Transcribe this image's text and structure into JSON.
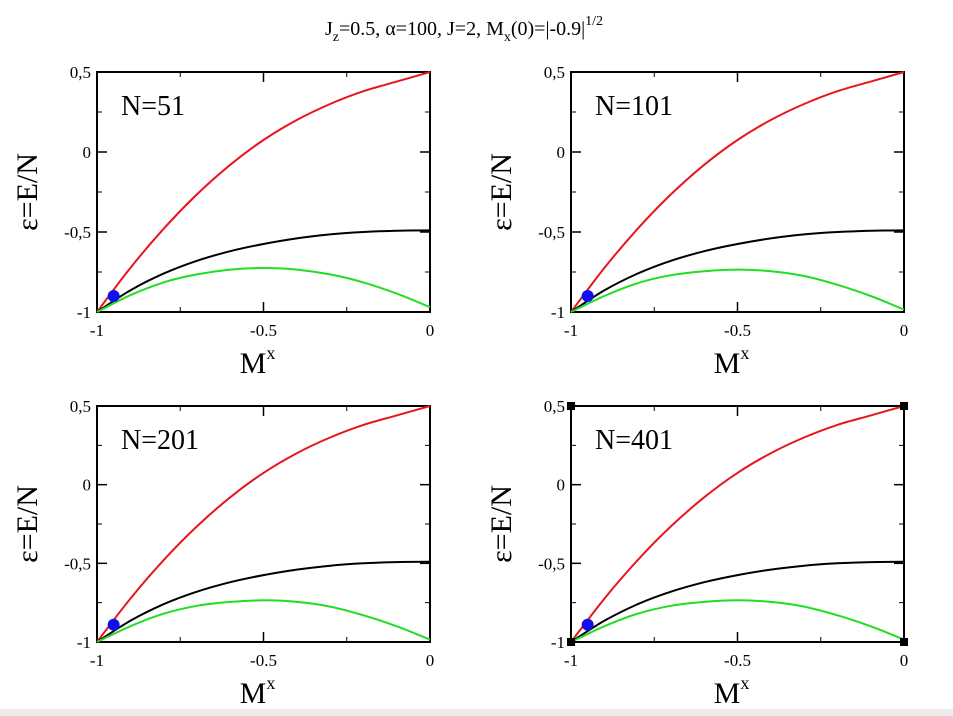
{
  "figure": {
    "title": {
      "parts": [
        "J",
        "z",
        "=0.5, ",
        "α",
        "=100, J=2, M",
        "x",
        "(0)=|-0.9|",
        "1/2"
      ]
    }
  },
  "colors": {
    "upper_curve": "#e8151b",
    "middle_curve": "#000000",
    "lower_curve": "#22dd22",
    "marker": "#1010ee"
  },
  "chart_data": [
    {
      "type": "line",
      "annotation": "N=51",
      "xlabel": "M",
      "xlabel_sup": "x",
      "ylabel": "ε=E/N",
      "xlim": [
        -1,
        0
      ],
      "ylim": [
        -1,
        0.5
      ],
      "x_ticks": [
        "-1",
        "-0.5",
        "0"
      ],
      "y_ticks": [
        "0,5",
        "0",
        "-0,5",
        "-1"
      ],
      "grid": false,
      "x": [
        -1,
        -0.9,
        -0.8,
        -0.7,
        -0.6,
        -0.5,
        -0.4,
        -0.3,
        -0.2,
        -0.1,
        0
      ],
      "series": [
        {
          "values": [
            -1,
            -0.725,
            -0.48,
            -0.265,
            -0.08,
            0.075,
            0.2,
            0.3,
            0.38,
            0.44,
            0.5
          ]
        },
        {
          "values": [
            -1,
            -0.865,
            -0.76,
            -0.68,
            -0.62,
            -0.575,
            -0.54,
            -0.515,
            -0.5,
            -0.492,
            -0.49
          ]
        },
        {
          "values": [
            -1,
            -0.895,
            -0.815,
            -0.765,
            -0.735,
            -0.725,
            -0.735,
            -0.765,
            -0.815,
            -0.885,
            -0.97
          ]
        }
      ],
      "marker": {
        "x": -0.95,
        "y": -0.9
      }
    },
    {
      "type": "line",
      "annotation": "N=101",
      "xlabel": "M",
      "xlabel_sup": "x",
      "ylabel": "ε=E/N",
      "xlim": [
        -1,
        0
      ],
      "ylim": [
        -1,
        0.5
      ],
      "x_ticks": [
        "-1",
        "-0.5",
        "0"
      ],
      "y_ticks": [
        "0,5",
        "0",
        "-0,5",
        "-1"
      ],
      "grid": false,
      "x": [
        -1,
        -0.9,
        -0.8,
        -0.7,
        -0.6,
        -0.5,
        -0.4,
        -0.3,
        -0.2,
        -0.1,
        0
      ],
      "series": [
        {
          "values": [
            -1,
            -0.725,
            -0.48,
            -0.265,
            -0.08,
            0.075,
            0.2,
            0.3,
            0.38,
            0.44,
            0.5
          ]
        },
        {
          "values": [
            -1,
            -0.865,
            -0.76,
            -0.68,
            -0.62,
            -0.575,
            -0.54,
            -0.515,
            -0.5,
            -0.492,
            -0.49
          ]
        },
        {
          "values": [
            -1,
            -0.9,
            -0.82,
            -0.77,
            -0.745,
            -0.735,
            -0.745,
            -0.775,
            -0.83,
            -0.9,
            -0.985
          ]
        }
      ],
      "marker": {
        "x": -0.95,
        "y": -0.9
      }
    },
    {
      "type": "line",
      "annotation": "N=201",
      "xlabel": "M",
      "xlabel_sup": "x",
      "ylabel": "ε=E/N",
      "xlim": [
        -1,
        0
      ],
      "ylim": [
        -1,
        0.5
      ],
      "x_ticks": [
        "-1",
        "-0.5",
        "0"
      ],
      "y_ticks": [
        "0,5",
        "0",
        "-0,5",
        "-1"
      ],
      "grid": false,
      "x": [
        -1,
        -0.9,
        -0.8,
        -0.7,
        -0.6,
        -0.5,
        -0.4,
        -0.3,
        -0.2,
        -0.1,
        0
      ],
      "series": [
        {
          "values": [
            -1,
            -0.725,
            -0.48,
            -0.265,
            -0.08,
            0.075,
            0.2,
            0.3,
            0.38,
            0.44,
            0.5
          ]
        },
        {
          "values": [
            -1,
            -0.865,
            -0.76,
            -0.68,
            -0.62,
            -0.575,
            -0.54,
            -0.515,
            -0.5,
            -0.492,
            -0.49
          ]
        },
        {
          "values": [
            -1,
            -0.9,
            -0.82,
            -0.77,
            -0.745,
            -0.735,
            -0.745,
            -0.775,
            -0.83,
            -0.9,
            -0.985
          ]
        }
      ],
      "marker": {
        "x": -0.95,
        "y": -0.89
      }
    },
    {
      "type": "line",
      "annotation": "N=401",
      "xlabel": "M",
      "xlabel_sup": "x",
      "ylabel": "ε=E/N",
      "xlim": [
        -1,
        0
      ],
      "ylim": [
        -1,
        0.5
      ],
      "x_ticks": [
        "-1",
        "-0.5",
        "0"
      ],
      "y_ticks": [
        "0,5",
        "0",
        "-0,5",
        "-1"
      ],
      "grid": false,
      "x": [
        -1,
        -0.9,
        -0.8,
        -0.7,
        -0.6,
        -0.5,
        -0.4,
        -0.3,
        -0.2,
        -0.1,
        0
      ],
      "series": [
        {
          "values": [
            -1,
            -0.725,
            -0.48,
            -0.265,
            -0.08,
            0.075,
            0.2,
            0.3,
            0.38,
            0.44,
            0.5
          ]
        },
        {
          "values": [
            -1,
            -0.865,
            -0.76,
            -0.68,
            -0.62,
            -0.575,
            -0.54,
            -0.515,
            -0.5,
            -0.492,
            -0.49
          ]
        },
        {
          "values": [
            -1,
            -0.9,
            -0.82,
            -0.77,
            -0.745,
            -0.735,
            -0.745,
            -0.775,
            -0.83,
            -0.9,
            -0.985
          ]
        }
      ],
      "marker": {
        "x": -0.95,
        "y": -0.89
      },
      "selected": true
    }
  ]
}
